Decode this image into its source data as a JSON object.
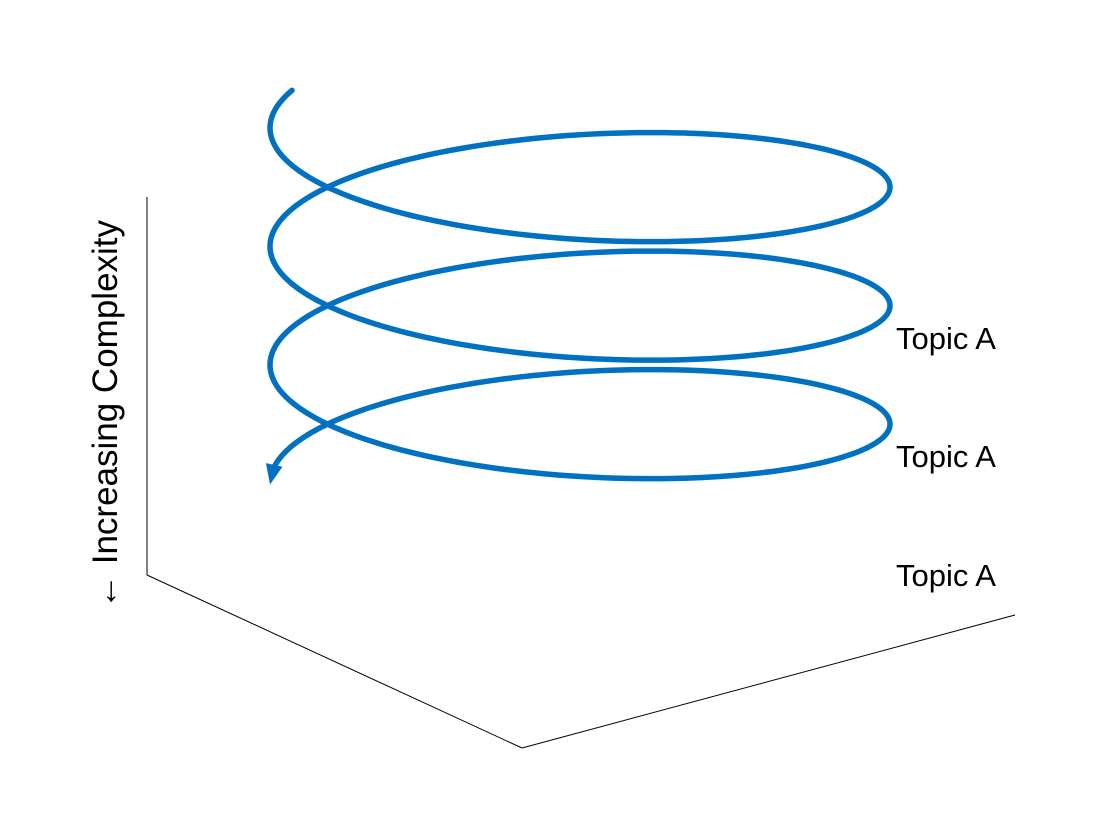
{
  "axis_label": "← Increasing Complexity",
  "spiral_color": "#0070C0",
  "topic_labels": [
    "Topic A",
    "Topic A",
    "Topic A"
  ]
}
